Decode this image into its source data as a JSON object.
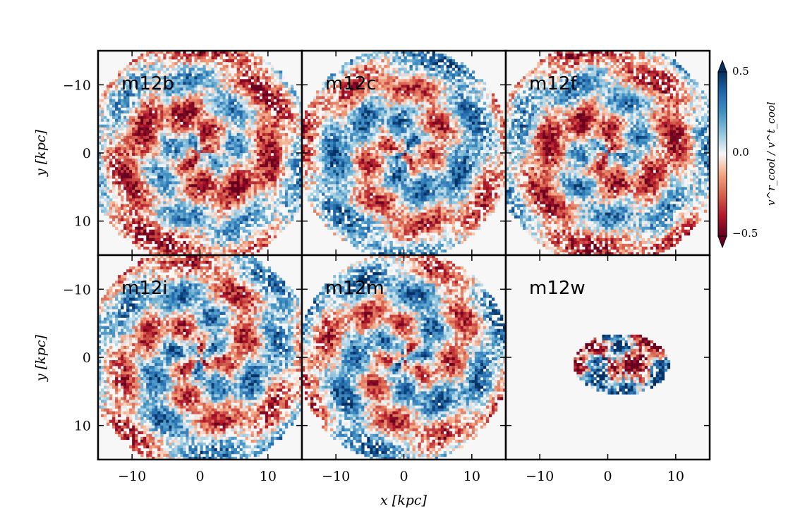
{
  "chart_data": {
    "type": "heatmap",
    "xlabel": "x [kpc]",
    "ylabel": "y [kpc]",
    "xlim": [
      -15,
      15
    ],
    "ylim": [
      -15,
      15
    ],
    "xticks": [
      -10,
      0,
      10
    ],
    "yticks": [
      -10,
      0,
      10
    ],
    "colorbar": {
      "label": "v^r_cool / v^t_cool",
      "range": [
        -0.5,
        0.5
      ],
      "ticks": [
        0.5,
        0.0,
        -0.5
      ],
      "tick_labels": [
        "0.5",
        "0.0",
        "−0.5"
      ],
      "colormap": "diverging red-white-blue",
      "low_color": "#67001f",
      "mid_color": "#f7f7f7",
      "high_color": "#053061",
      "extend": "both"
    },
    "panels": [
      {
        "name": "m12b",
        "pattern": "spiral",
        "extent_kpc": 15,
        "arms": 2,
        "red_bias": 0.15
      },
      {
        "name": "m12c",
        "pattern": "spiral",
        "extent_kpc": 14,
        "arms": 2,
        "red_bias": -0.05
      },
      {
        "name": "m12f",
        "pattern": "spiral",
        "extent_kpc": 15,
        "arms": 2,
        "red_bias": 0.1
      },
      {
        "name": "m12i",
        "pattern": "spiral",
        "extent_kpc": 15,
        "arms": 3,
        "red_bias": 0.0
      },
      {
        "name": "m12m",
        "pattern": "spiral",
        "extent_kpc": 14,
        "arms": 3,
        "red_bias": -0.05
      },
      {
        "name": "m12w",
        "pattern": "compact",
        "extent_kpc": 6,
        "arms": 2,
        "red_bias": 0.0
      }
    ],
    "grid": false,
    "layout": "2 rows x 3 columns, shared axes"
  },
  "tick_labels": {
    "x": [
      "−10",
      "0",
      "10"
    ],
    "y": [
      "10",
      "0",
      "−10"
    ]
  }
}
